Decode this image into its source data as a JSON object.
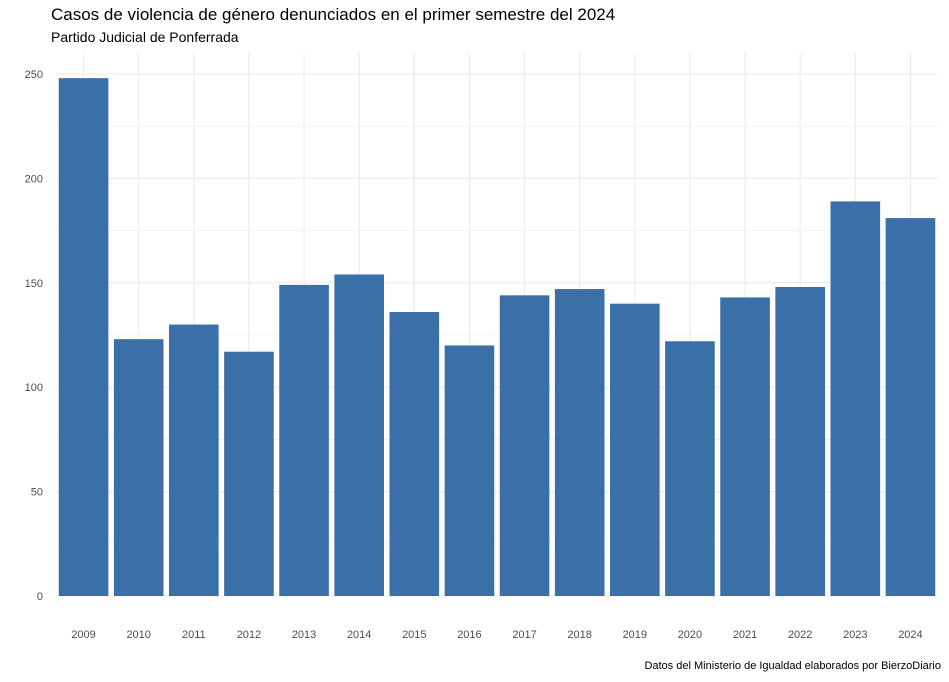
{
  "chart_data": {
    "type": "bar",
    "title": "Casos de violencia de género denunciados en el primer semestre del 2024",
    "subtitle": "Partido Judicial de Ponferrada",
    "caption": "Datos del Ministerio de Igualdad elaborados por BierzoDiario",
    "xlabel": "",
    "ylabel": "",
    "categories": [
      "2009",
      "2010",
      "2011",
      "2012",
      "2013",
      "2014",
      "2015",
      "2016",
      "2017",
      "2018",
      "2019",
      "2020",
      "2021",
      "2022",
      "2023",
      "2024"
    ],
    "values": [
      248,
      123,
      130,
      117,
      149,
      154,
      136,
      120,
      144,
      147,
      140,
      122,
      143,
      148,
      189,
      181
    ],
    "ylim": [
      0,
      260
    ],
    "yticks": [
      0,
      50,
      100,
      150,
      200,
      250
    ],
    "grid": true,
    "bar_color": "#3a6fa8",
    "grid_color": "#ebebeb"
  }
}
